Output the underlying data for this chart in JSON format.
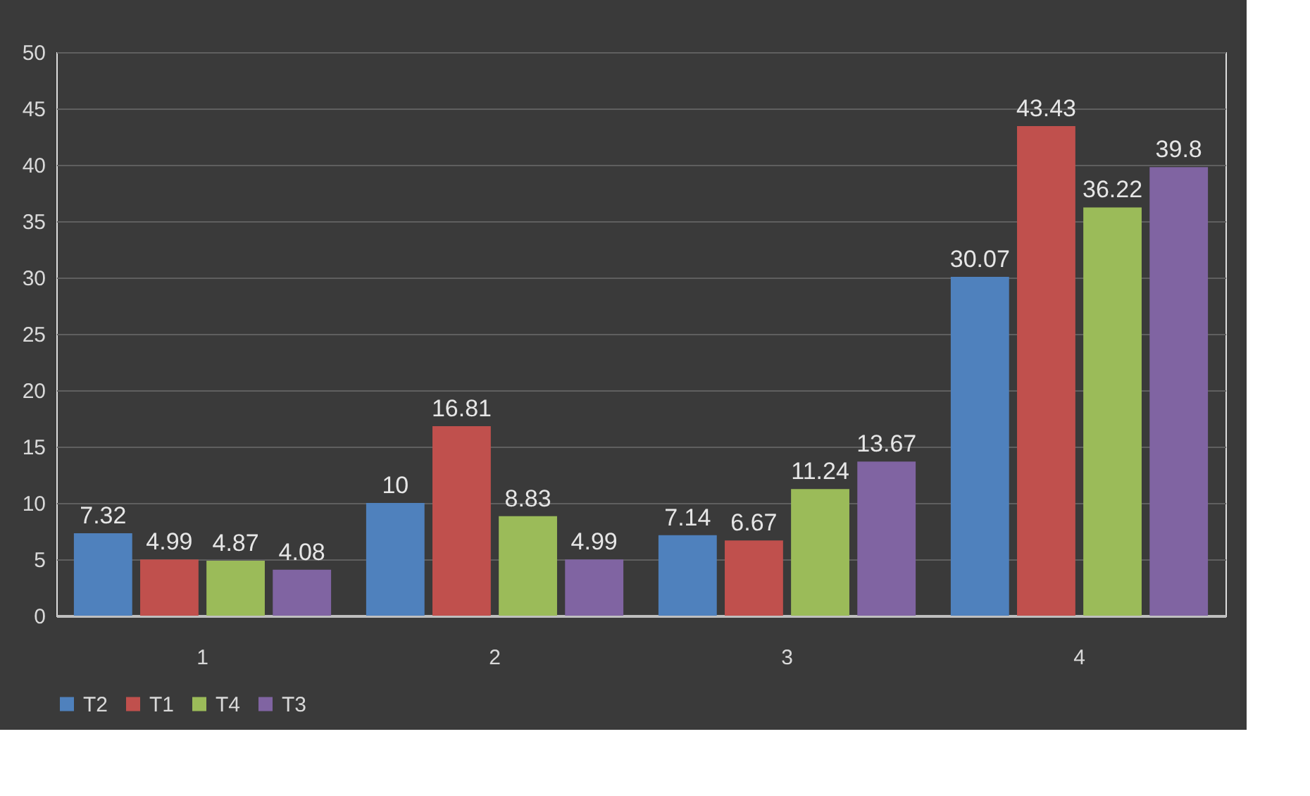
{
  "chart_data": {
    "type": "bar",
    "categories": [
      "1",
      "2",
      "3",
      "4"
    ],
    "series": [
      {
        "name": "T2",
        "color": "#4f81bd",
        "values": [
          7.32,
          10,
          7.14,
          30.07
        ]
      },
      {
        "name": "T1",
        "color": "#c0504d",
        "values": [
          4.99,
          16.81,
          6.67,
          43.43
        ]
      },
      {
        "name": "T4",
        "color": "#9bbb59",
        "values": [
          4.87,
          8.83,
          11.24,
          36.22
        ]
      },
      {
        "name": "T3",
        "color": "#8064a2",
        "values": [
          4.08,
          4.99,
          13.67,
          39.8
        ]
      }
    ],
    "ylim": [
      0,
      50
    ],
    "yticks": [
      0,
      5,
      10,
      15,
      20,
      25,
      30,
      35,
      40,
      45,
      50
    ],
    "grid": "y",
    "legend": "bottom",
    "data_labels": true
  }
}
